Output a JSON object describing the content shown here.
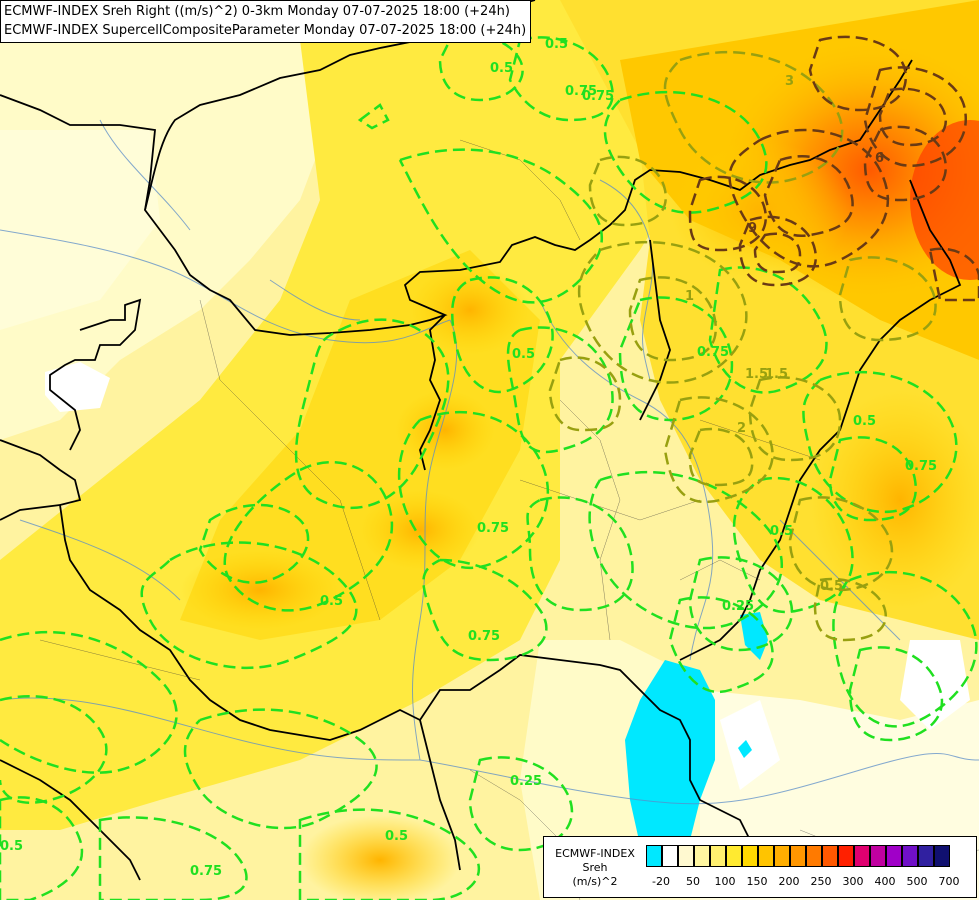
{
  "title": {
    "line1": "ECMWF-INDEX Sreh Right ((m/s)^2) 0-3km Monday 07-07-2025 18:00 (+24h)",
    "line2": "ECMWF-INDEX SupercellCompositeParameter Monday 07-07-2025 18:00 (+24h)"
  },
  "legend": {
    "line1": "ECMWF-INDEX",
    "line2": "Sreh",
    "line3": "(m/s)^2",
    "colors": [
      "#00e8ff",
      "#ffffff",
      "#fff9d0",
      "#fff6a0",
      "#fff070",
      "#ffea30",
      "#ffd800",
      "#ffc400",
      "#ffae00",
      "#ff9600",
      "#ff7a00",
      "#ff5800",
      "#ff2000",
      "#e00070",
      "#c000a0",
      "#a000c8",
      "#7010c8",
      "#3020a0",
      "#101070"
    ],
    "ticks": [
      "-20",
      "50",
      "100",
      "150",
      "200",
      "250",
      "300",
      "400",
      "500",
      "700"
    ]
  },
  "contour_labels": [
    "0.5",
    "0.75",
    "0.75",
    "0.5",
    "0.5",
    "0.75",
    "1.5",
    "0.75",
    "0.5",
    "0.5",
    "0.75",
    "0.25",
    "0.5",
    "0.75",
    "0.5",
    "0.25",
    "0.5",
    "0.5",
    "0.75",
    "1.5",
    "2",
    "3",
    "6",
    "9",
    "1"
  ]
}
